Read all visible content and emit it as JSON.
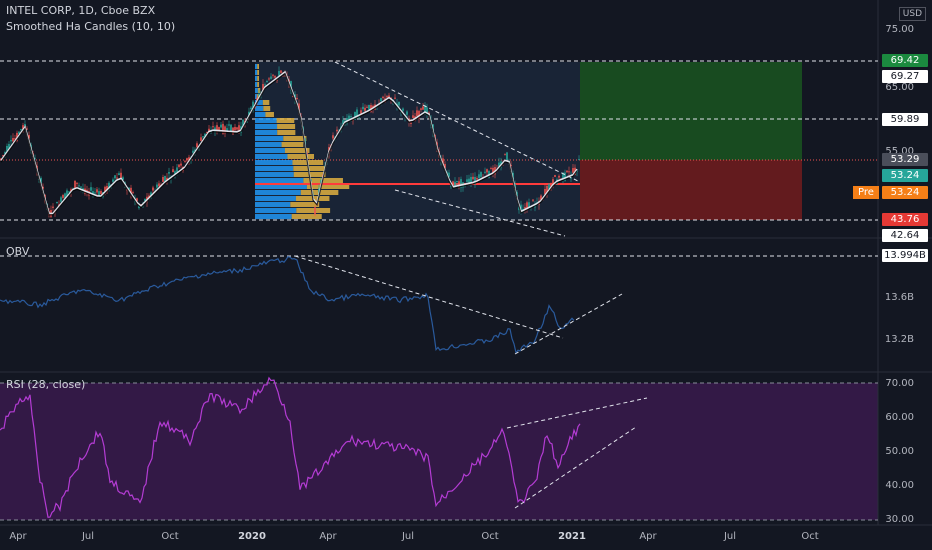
{
  "header": {
    "symbol_line": "INTEL CORP, 1D, Cboe BZX",
    "indicator_line": "Smoothed Ha Candles (10, 10)"
  },
  "currency_label": "USD",
  "pre_label": "Pre",
  "price_pane": {
    "ticks": [
      "75.00",
      "65.00",
      "55.00"
    ],
    "badges": [
      {
        "text": "69.42",
        "bg": "#1b8a3f",
        "fg": "#ffffff",
        "value": 69.42
      },
      {
        "text": "69.27",
        "bg": "#ffffff",
        "fg": "#131722",
        "value": 69.27
      },
      {
        "text": "59.89",
        "bg": "#ffffff",
        "fg": "#131722",
        "value": 59.89
      },
      {
        "text": "53.29",
        "bg": "#4a4e5a",
        "fg": "#ffffff",
        "value": 53.29
      },
      {
        "text": "53.24",
        "bg": "#26a69a",
        "fg": "#ffffff",
        "value": 53.24
      },
      {
        "text": "53.24",
        "bg": "#f57f17",
        "fg": "#ffffff",
        "value": 53.24
      },
      {
        "text": "43.76",
        "bg": "#e53935",
        "fg": "#ffffff",
        "value": 43.76
      },
      {
        "text": "42.64",
        "bg": "#ffffff",
        "fg": "#131722",
        "value": 42.64
      }
    ]
  },
  "obv_pane": {
    "label": "OBV",
    "ticks": [
      "13.6B",
      "13.2B"
    ],
    "badge": "13.994B"
  },
  "rsi_pane": {
    "label": "RSI (28, close)",
    "ticks": [
      "70.00",
      "60.00",
      "50.00",
      "40.00",
      "30.00"
    ]
  },
  "x_axis": {
    "ticks": [
      {
        "label": "Apr",
        "bold": false
      },
      {
        "label": "Jul",
        "bold": false
      },
      {
        "label": "Oct",
        "bold": false
      },
      {
        "label": "2020",
        "bold": true
      },
      {
        "label": "Apr",
        "bold": false
      },
      {
        "label": "Jul",
        "bold": false
      },
      {
        "label": "Oct",
        "bold": false
      },
      {
        "label": "2021",
        "bold": true
      },
      {
        "label": "Apr",
        "bold": false
      },
      {
        "label": "Jul",
        "bold": false
      },
      {
        "label": "Oct",
        "bold": false
      }
    ]
  },
  "colors": {
    "background": "#131722",
    "up_candle": "#26a69a",
    "down_candle": "#ef5350",
    "obv_line": "#2962ff",
    "rsi_line": "#ab47bc",
    "rsi_band": "#4a1c5e",
    "target_zone": "#1b5e20",
    "stop_zone": "#7f1d1d",
    "volume_profile_up": "#2196f3",
    "volume_profile_down": "#e0b040",
    "poc_line": "#ff3b3b"
  }
}
